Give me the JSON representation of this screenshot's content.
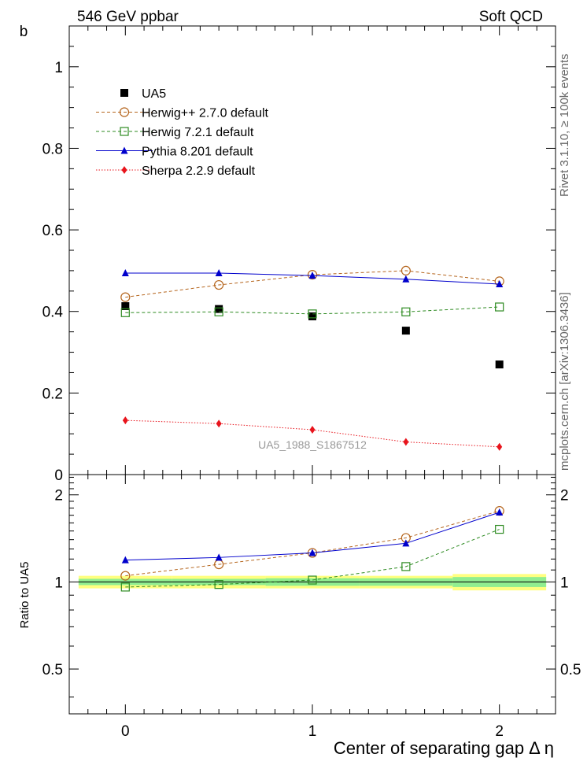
{
  "header": {
    "left": "546 GeV ppbar",
    "right": "Soft QCD"
  },
  "side_labels": {
    "rivet": "Rivet 3.1.10, ≥ 100k events",
    "mcplots": "mcplots.cern.ch [arXiv:1306.3436]"
  },
  "watermark": "UA5_1988_S1867512",
  "chart_data": [
    {
      "type": "scatter",
      "panel": "main",
      "ylabel": "b",
      "xlim": [
        -0.3,
        2.3
      ],
      "ylim": [
        0,
        1.1
      ],
      "yticks": [
        0,
        0.2,
        0.4,
        0.6,
        0.8,
        1
      ],
      "ytick_labels": [
        "0",
        "0.2",
        "0.4",
        "0.6",
        "0.8",
        "1"
      ],
      "legend_position": "top-left",
      "series": [
        {
          "name": "UA5",
          "color": "#000000",
          "marker": "filled-square",
          "line": "none",
          "x": [
            0,
            0.5,
            1,
            1.5,
            2
          ],
          "y": [
            0.413,
            0.406,
            0.388,
            0.353,
            0.27
          ]
        },
        {
          "name": "Herwig++ 2.7.0 default",
          "color": "#b5651d",
          "marker": "open-circle",
          "line": "dashed",
          "x": [
            0,
            0.5,
            1,
            1.5,
            2
          ],
          "y": [
            0.435,
            0.465,
            0.49,
            0.5,
            0.474
          ]
        },
        {
          "name": "Herwig 7.2.1 default",
          "color": "#2e8b22",
          "marker": "open-square",
          "line": "dashed",
          "x": [
            0,
            0.5,
            1,
            1.5,
            2
          ],
          "y": [
            0.397,
            0.399,
            0.394,
            0.399,
            0.411
          ]
        },
        {
          "name": "Pythia 8.201 default",
          "color": "#0000cc",
          "marker": "filled-triangle",
          "line": "solid",
          "x": [
            0,
            0.5,
            1,
            1.5,
            2
          ],
          "y": [
            0.494,
            0.494,
            0.488,
            0.479,
            0.467
          ]
        },
        {
          "name": "Sherpa 2.2.9 default",
          "color": "#e8141c",
          "marker": "filled-diamond",
          "line": "dotted",
          "x": [
            0,
            0.5,
            1,
            1.5,
            2
          ],
          "y": [
            0.133,
            0.125,
            0.11,
            0.08,
            0.068
          ]
        }
      ]
    },
    {
      "type": "scatter",
      "panel": "ratio",
      "ylabel": "Ratio to UA5",
      "xlabel": "Center of separating gap Δ η",
      "xlim": [
        -0.3,
        2.3
      ],
      "ylim": [
        0.35,
        2.35
      ],
      "xticks": [
        0,
        1,
        2
      ],
      "xtick_labels": [
        "0",
        "1",
        "2"
      ],
      "yticks": [
        0.5,
        1,
        2
      ],
      "ytick_labels": [
        "0.5",
        "1",
        "2"
      ],
      "uncertainty_bands": {
        "x_edges": [
          -0.25,
          0.25,
          0.75,
          1.25,
          1.75,
          2.25
        ],
        "green_halfwidth": [
          0.025,
          0.025,
          0.03,
          0.03,
          0.04
        ],
        "yellow_halfwidth": [
          0.05,
          0.05,
          0.05,
          0.05,
          0.065
        ],
        "green_color": "#90ee90",
        "yellow_color": "#ffff80"
      },
      "series": [
        {
          "name": "Herwig++ 2.7.0 default",
          "color": "#b5651d",
          "marker": "open-circle",
          "line": "dashed",
          "x": [
            0,
            0.5,
            1,
            1.5,
            2
          ],
          "y": [
            1.05,
            1.15,
            1.26,
            1.42,
            1.76
          ]
        },
        {
          "name": "Herwig 7.2.1 default",
          "color": "#2e8b22",
          "marker": "open-square",
          "line": "dashed",
          "x": [
            0,
            0.5,
            1,
            1.5,
            2
          ],
          "y": [
            0.96,
            0.98,
            1.015,
            1.13,
            1.52
          ]
        },
        {
          "name": "Pythia 8.201 default",
          "color": "#0000cc",
          "marker": "filled-triangle",
          "line": "solid",
          "x": [
            0,
            0.5,
            1,
            1.5,
            2
          ],
          "y": [
            1.19,
            1.215,
            1.26,
            1.36,
            1.74
          ]
        }
      ]
    }
  ]
}
